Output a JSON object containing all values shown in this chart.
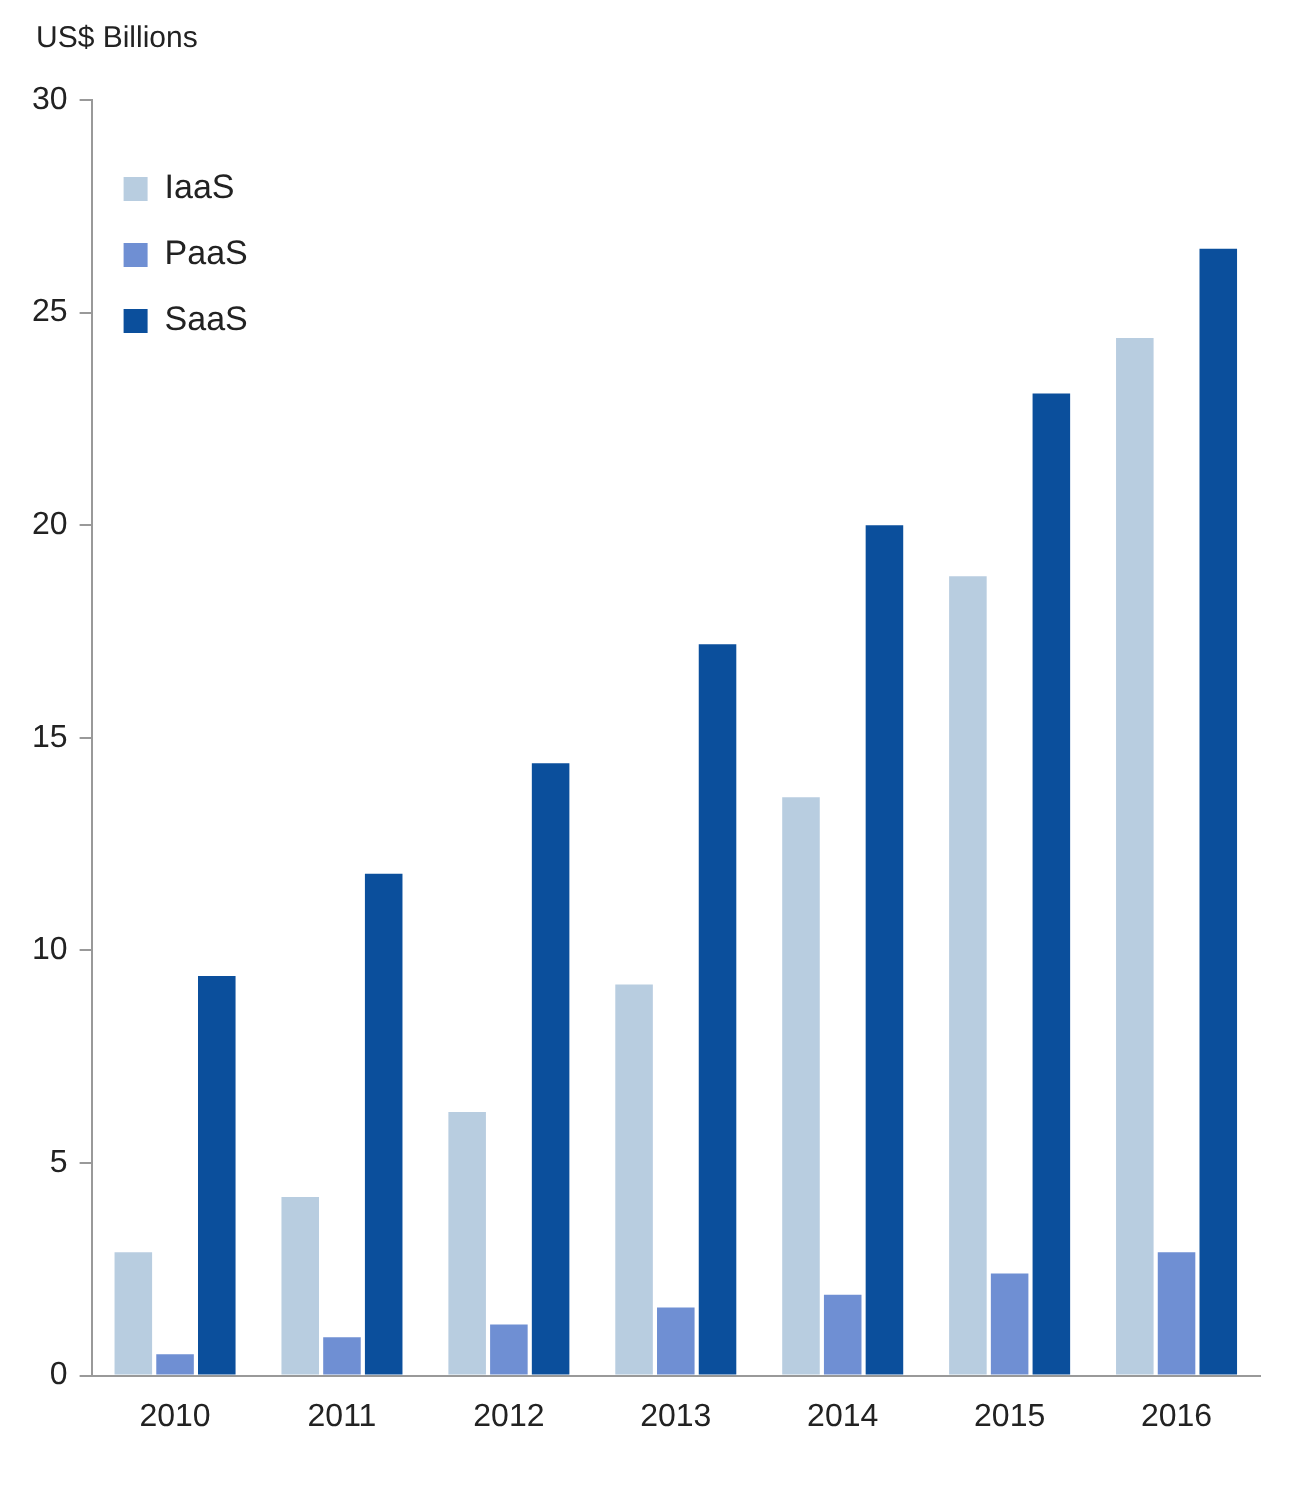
{
  "chart_data": {
    "type": "bar",
    "ylabel": "US$ Billions",
    "categories": [
      "2010",
      "2011",
      "2012",
      "2013",
      "2014",
      "2015",
      "2016"
    ],
    "series": [
      {
        "name": "IaaS",
        "color": "#b8cde0",
        "values": [
          2.9,
          4.2,
          6.2,
          9.2,
          13.6,
          18.8,
          24.4
        ]
      },
      {
        "name": "PaaS",
        "color": "#6f8fd3",
        "values": [
          0.5,
          0.9,
          1.2,
          1.6,
          1.9,
          2.4,
          2.9
        ]
      },
      {
        "name": "SaaS",
        "color": "#0b4f9c",
        "values": [
          9.4,
          11.8,
          14.4,
          17.2,
          20.0,
          23.1,
          26.5
        ]
      }
    ],
    "ylim": [
      0,
      30
    ],
    "yticks": [
      0,
      5,
      10,
      15,
      20,
      25,
      30
    ],
    "grid": false,
    "legend": "top left"
  }
}
